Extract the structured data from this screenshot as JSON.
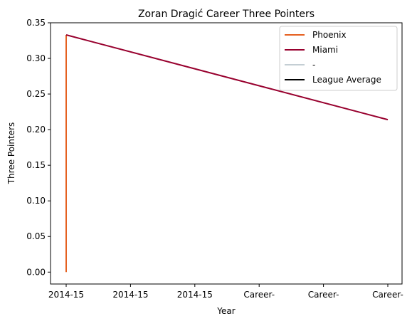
{
  "chart_data": {
    "type": "line",
    "title": "Zoran Dragić Career Three Pointers",
    "xlabel": "Year",
    "ylabel": "Three Pointers",
    "x_tick_labels": [
      "2014-15",
      "2014-15",
      "2014-15",
      "Career-",
      "Career-",
      "Career-"
    ],
    "ylim": [
      -0.0167,
      0.35
    ],
    "y_ticks": [
      "0.00",
      "0.05",
      "0.10",
      "0.15",
      "0.20",
      "0.25",
      "0.30",
      "0.35"
    ],
    "grid": false,
    "legend_position": "top-right",
    "series": [
      {
        "name": "Phoenix",
        "color": "#E56020",
        "points": [
          {
            "x": 0,
            "y": 0.0
          },
          {
            "x": 0,
            "y": 0.333
          }
        ]
      },
      {
        "name": "Miami",
        "color": "#98002E",
        "points": [
          {
            "x": 0,
            "y": 0.333
          },
          {
            "x": 5,
            "y": 0.214
          }
        ]
      },
      {
        "name": "-",
        "color": "#C4CED4",
        "points": []
      },
      {
        "name": "League Average",
        "color": "#000000",
        "points": []
      }
    ]
  }
}
